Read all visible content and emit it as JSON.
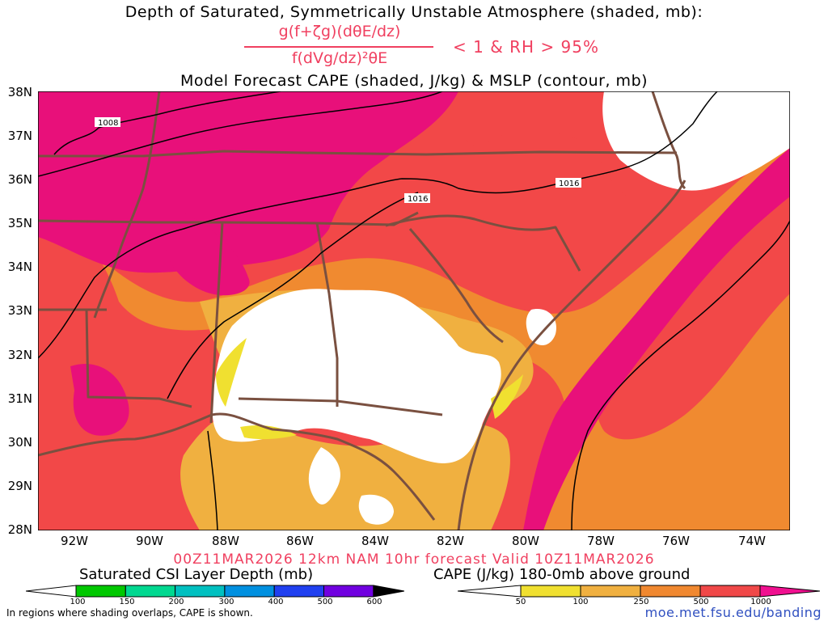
{
  "titles": {
    "line1": "Depth of Saturated, Symmetrically Unstable Atmosphere (shaded, mb):",
    "formula_numerator": "g(f+ζg)(dθE/dz)",
    "formula_denominator": "f(dVg/dz)²θE",
    "condition": "< 1 & RH > 95%",
    "line2": "Model Forecast CAPE (shaded, J/kg) & MSLP (contour, mb)",
    "run_info": "00Z11MAR2026 12km NAM 10hr forecast Valid 10Z11MAR2026"
  },
  "axes": {
    "lat_labels": [
      "38N",
      "37N",
      "36N",
      "35N",
      "34N",
      "33N",
      "32N",
      "31N",
      "30N",
      "29N",
      "28N"
    ],
    "lon_labels": [
      "92W",
      "90W",
      "88W",
      "86W",
      "84W",
      "82W",
      "80W",
      "78W",
      "76W",
      "74W"
    ]
  },
  "contours": {
    "labels": [
      "1008",
      "1016",
      "1016"
    ]
  },
  "colorbar_csi": {
    "title": "Saturated CSI Layer Depth (mb)",
    "labels": [
      "100",
      "150",
      "200",
      "300",
      "400",
      "500",
      "600"
    ],
    "colors": [
      "#00c800",
      "#00d890",
      "#00c0c0",
      "#0090e0",
      "#2040f0",
      "#7000e0",
      "#000000"
    ]
  },
  "colorbar_cape": {
    "title": "CAPE (J/kg) 180-0mb above ground",
    "labels": [
      "50",
      "100",
      "250",
      "500",
      "1000"
    ],
    "colors": [
      "#f0e030",
      "#f0b040",
      "#f08830",
      "#f04848",
      "#f01090"
    ]
  },
  "footer": {
    "note": "In regions where shading overlaps, CAPE is shown.",
    "website": "moe.met.fsu.edu/banding"
  },
  "map_colors": {
    "magenta": "#e8107a",
    "red": "#f24848",
    "orange": "#f08a30",
    "light_orange": "#f0b040",
    "yellow": "#f0e030",
    "border": "#7a5040",
    "contour": "#000000"
  }
}
